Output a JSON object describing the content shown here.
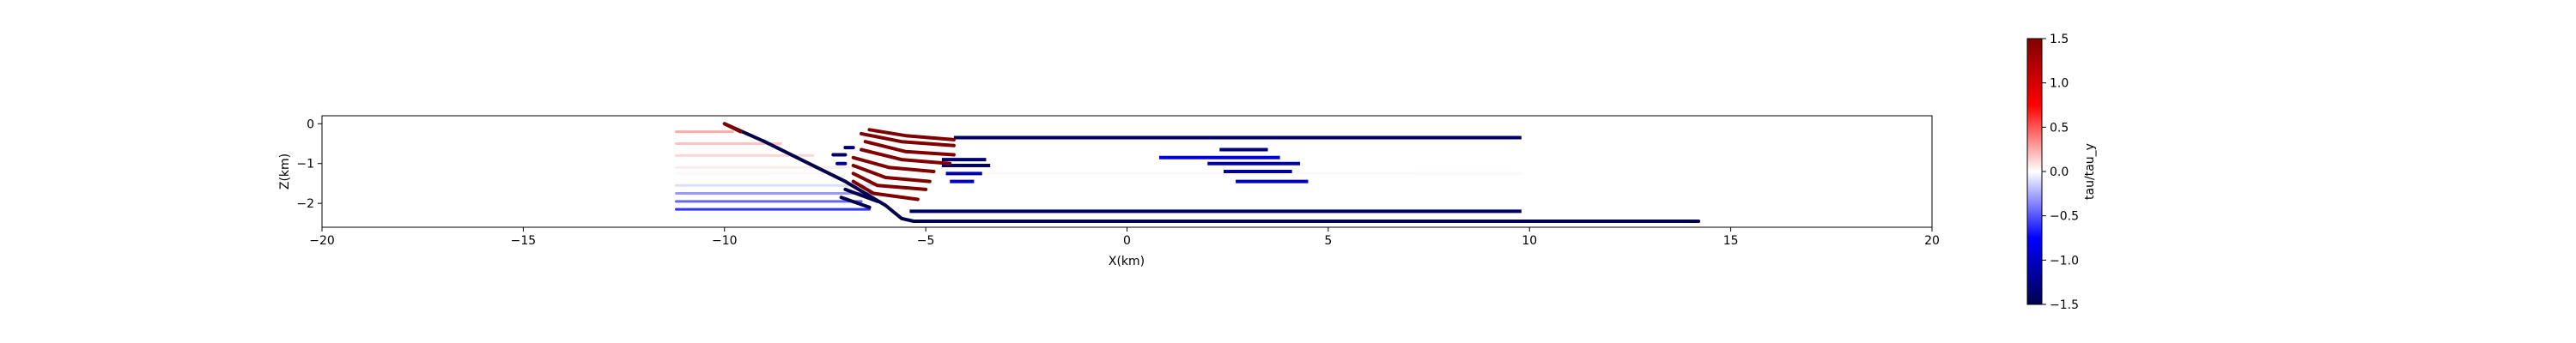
{
  "chart_data": {
    "type": "line",
    "title": "",
    "xlabel": "X(km)",
    "ylabel": "Z(km)",
    "xlim": [
      -20,
      20
    ],
    "ylim": [
      -2.6,
      0.2
    ],
    "x_ticks": [
      -20,
      -15,
      -10,
      -5,
      0,
      5,
      10,
      15,
      20
    ],
    "x_tick_labels": [
      "−20",
      "−15",
      "−10",
      "−5",
      "0",
      "5",
      "10",
      "15",
      "20"
    ],
    "y_ticks": [
      0,
      -1,
      -2
    ],
    "y_tick_labels": [
      "0",
      "−1",
      "−2"
    ],
    "grid": false,
    "legend": "none",
    "colormap": "seismic",
    "colorbar": {
      "label": "tau/tau_y",
      "vmin": -1.5,
      "vmax": 1.5,
      "ticks": [
        1.5,
        1.0,
        0.5,
        0.0,
        -0.5,
        -1.0,
        -1.5
      ],
      "tick_labels": [
        "1.5",
        "1.0",
        "0.5",
        "0.0",
        "−0.5",
        "−1.0",
        "−1.5"
      ],
      "colors": [
        "#00004c",
        "#0000ff",
        "#ffffff",
        "#ff0000",
        "#800000"
      ]
    },
    "main_fault": {
      "value": -1.5,
      "points": [
        [
          -10,
          0
        ],
        [
          -9,
          -0.45
        ],
        [
          -8,
          -0.95
        ],
        [
          -7,
          -1.45
        ],
        [
          -6,
          -2.05
        ],
        [
          -5.6,
          -2.38
        ],
        [
          -5.3,
          -2.45
        ],
        [
          14.2,
          -2.45
        ]
      ]
    },
    "hanging_wall_segment": {
      "value": 1.5,
      "points": [
        [
          -10,
          0
        ],
        [
          -9.6,
          -0.2
        ]
      ]
    },
    "faint_streaks": [
      {
        "x0": -11.2,
        "x1": -9.8,
        "y": -0.2,
        "value": 0.25
      },
      {
        "x0": -11.2,
        "x1": -8.6,
        "y": -0.5,
        "value": 0.18
      },
      {
        "x0": -11.2,
        "x1": -7.8,
        "y": -0.8,
        "value": 0.12
      },
      {
        "x0": -11.2,
        "x1": -6.8,
        "y": -1.1,
        "value": 0.06
      },
      {
        "x0": -11.2,
        "x1": 9.8,
        "y": -1.25,
        "value": 0.02
      },
      {
        "x0": -11.2,
        "x1": -6.3,
        "y": -1.55,
        "value": -0.1
      },
      {
        "x0": -11.2,
        "x1": -6.3,
        "y": -1.75,
        "value": -0.3
      },
      {
        "x0": -11.2,
        "x1": -6.6,
        "y": -1.95,
        "value": -0.45
      },
      {
        "x0": -11.2,
        "x1": -6.4,
        "y": -2.15,
        "value": -0.6
      }
    ],
    "splays": [
      {
        "value": 1.5,
        "points": [
          [
            -6.4,
            -0.15
          ],
          [
            -5.5,
            -0.3
          ],
          [
            -4.3,
            -0.4
          ]
        ]
      },
      {
        "value": 1.5,
        "points": [
          [
            -6.6,
            -0.25
          ],
          [
            -5.6,
            -0.45
          ],
          [
            -4.3,
            -0.55
          ]
        ]
      },
      {
        "value": 1.5,
        "points": [
          [
            -6.5,
            -0.45
          ],
          [
            -5.5,
            -0.7
          ],
          [
            -4.3,
            -0.78
          ]
        ]
      },
      {
        "value": 1.5,
        "points": [
          [
            -6.6,
            -0.65
          ],
          [
            -5.6,
            -0.9
          ],
          [
            -4.4,
            -1.0
          ]
        ]
      },
      {
        "value": 1.5,
        "points": [
          [
            -6.8,
            -0.85
          ],
          [
            -5.9,
            -1.1
          ],
          [
            -4.8,
            -1.2
          ]
        ]
      },
      {
        "value": 1.5,
        "points": [
          [
            -6.8,
            -1.05
          ],
          [
            -6.0,
            -1.35
          ],
          [
            -4.9,
            -1.45
          ]
        ]
      },
      {
        "value": 1.5,
        "points": [
          [
            -6.8,
            -1.25
          ],
          [
            -6.2,
            -1.55
          ],
          [
            -5.0,
            -1.65
          ]
        ]
      },
      {
        "value": 1.5,
        "points": [
          [
            -6.8,
            -1.45
          ],
          [
            -6.3,
            -1.75
          ],
          [
            -5.2,
            -1.9
          ]
        ]
      }
    ],
    "fragments": [
      {
        "value": -1.4,
        "points": [
          [
            -7.0,
            -0.6
          ],
          [
            -6.8,
            -0.6
          ]
        ]
      },
      {
        "value": -1.4,
        "points": [
          [
            -7.3,
            -0.78
          ],
          [
            -7.0,
            -0.78
          ]
        ]
      },
      {
        "value": -1.2,
        "points": [
          [
            -7.2,
            -1.0
          ],
          [
            -7.0,
            -1.0
          ]
        ]
      },
      {
        "value": -1.5,
        "points": [
          [
            -7.0,
            -1.65
          ],
          [
            -6.2,
            -1.95
          ]
        ]
      },
      {
        "value": -1.5,
        "points": [
          [
            -7.1,
            -1.85
          ],
          [
            -6.4,
            -2.1
          ]
        ]
      }
    ],
    "horizontal_bars": [
      {
        "x0": -4.3,
        "x1": 9.8,
        "y": -0.35,
        "value": -1.4
      },
      {
        "x0": -4.6,
        "x1": -3.5,
        "y": -0.9,
        "value": -1.35
      },
      {
        "x0": -4.6,
        "x1": -3.4,
        "y": -1.05,
        "value": -1.35
      },
      {
        "x0": -4.5,
        "x1": -3.6,
        "y": -1.25,
        "value": -1.1
      },
      {
        "x0": -4.4,
        "x1": -3.8,
        "y": -1.45,
        "value": -1.0
      },
      {
        "x0": 2.3,
        "x1": 3.5,
        "y": -0.65,
        "value": -1.3
      },
      {
        "x0": 0.8,
        "x1": 3.8,
        "y": -0.85,
        "value": -0.9
      },
      {
        "x0": 2.0,
        "x1": 4.3,
        "y": -1.0,
        "value": -1.1
      },
      {
        "x0": 2.4,
        "x1": 4.1,
        "y": -1.2,
        "value": -1.2
      },
      {
        "x0": 2.7,
        "x1": 4.5,
        "y": -1.45,
        "value": -1.0
      },
      {
        "x0": -5.4,
        "x1": 9.8,
        "y": -2.2,
        "value": -1.4
      }
    ]
  }
}
